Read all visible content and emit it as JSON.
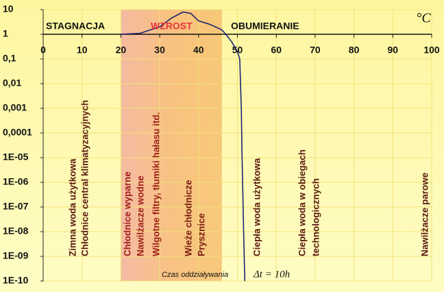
{
  "chart_data": {
    "type": "line",
    "unit": "°C",
    "x": [
      20,
      25,
      30,
      33,
      36,
      38,
      40,
      43,
      46,
      47,
      48.5,
      50,
      50.6,
      51,
      51.2,
      51.6,
      51.9
    ],
    "values": [
      1,
      1.1,
      2,
      4.5,
      8,
      7,
      3.5,
      2.5,
      1.5,
      1,
      0.5,
      0.2,
      0.1,
      0.001,
      1e-05,
      1e-08,
      1e-10
    ],
    "color": "#1c2470",
    "highlight_range": [
      20,
      46
    ],
    "xlim": [
      0,
      100
    ],
    "xticks": [
      0,
      10,
      20,
      30,
      40,
      50,
      60,
      70,
      80,
      90,
      100
    ],
    "ylim": [
      1e-10,
      10
    ],
    "log_scale": true,
    "grid": true,
    "yticks": [
      10,
      1,
      {
        "value": 0.1,
        "label": "0,1"
      },
      {
        "value": 0.01,
        "label": "0,01"
      },
      {
        "value": 0.001,
        "label": "0,001"
      },
      {
        "value": 0.0001,
        "label": "0,0001"
      },
      {
        "value": 1e-05,
        "label": "1E-05"
      },
      {
        "value": 1e-06,
        "label": "1E-06"
      },
      {
        "value": 1e-07,
        "label": "1E-07"
      },
      {
        "value": 1e-08,
        "label": "1E-08"
      },
      {
        "value": 1e-09,
        "label": "1E-09"
      },
      {
        "value": 1e-10,
        "label": "1E-10"
      }
    ],
    "zone_labels": [
      "STAGNACJA",
      "WZROST",
      "OBUMIERANIE"
    ],
    "vertical_labels": [
      [
        "Zimna woda użytkowa",
        "Chłodnice central klimatyzacyjnych"
      ],
      [
        "Chłodnice wyparne",
        "Nawilżacze wodne",
        "Wilgotne filtry, tłumiki hałasu itd."
      ],
      [
        "Wieże chłodnicze",
        "Prysznice"
      ],
      [
        "Ciepła woda użytkowa"
      ],
      [
        "Ciepła woda w obiegach",
        "technologicznych"
      ],
      [
        "Nawilżacze parowe"
      ]
    ],
    "time_label": "Czas oddziaływania",
    "time_value": "Δt = 10h"
  }
}
